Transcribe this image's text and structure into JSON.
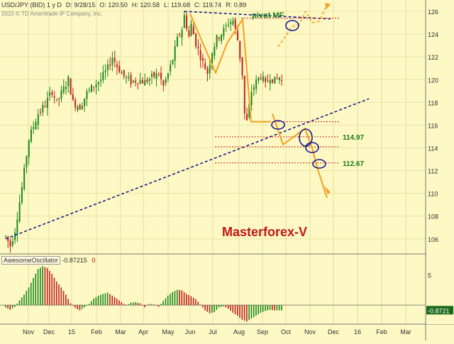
{
  "header": {
    "symbol": "USD/JPY (BID) 1 y D",
    "date": "D: 9/28/15",
    "open": "O: 120.50",
    "high": "H: 120.58",
    "low": "L: 119.68",
    "close": "C: 119.74",
    "range": "R: 0.89",
    "copyright": "2015 © TD Ameritrade IP Company, Inc."
  },
  "oscillator": {
    "name": "AwesomeOscillator",
    "value": "-0.87215",
    "zero": "0",
    "last_value_label": "-0.8721",
    "tick_label": "5"
  },
  "annotations": {
    "pivot": "pivot MF",
    "level1": "114.97",
    "level2": "112.67",
    "brand": "Masterforex-V"
  },
  "colors": {
    "bg": "#fdf8c4",
    "up": "#1a8a1a",
    "down": "#c02020",
    "orange": "#f5a020",
    "trend": "#1a1a8a",
    "level": "#cc2222",
    "brand": "#c01818"
  },
  "chart_data": {
    "type": "candlestick",
    "x_ticks": [
      "Nov",
      "Dec",
      "15",
      "Feb",
      "Mar",
      "Apr",
      "May",
      "Jun",
      "Jul",
      "Aug",
      "Sep",
      "Oct",
      "Nov",
      "Dec",
      "16",
      "Feb",
      "Mar"
    ],
    "y_ticks": [
      106,
      108,
      110,
      112,
      114,
      116,
      118,
      120,
      122,
      124,
      126
    ],
    "ylim": [
      104.8,
      127
    ],
    "price_path": [
      [
        0,
        106.2
      ],
      [
        2,
        105.4
      ],
      [
        4,
        106.8
      ],
      [
        7,
        110.5
      ],
      [
        10,
        114.8
      ],
      [
        14,
        117.0
      ],
      [
        17,
        117.8
      ],
      [
        20,
        119.0
      ],
      [
        22,
        118.0
      ],
      [
        24,
        118.8
      ],
      [
        27,
        120.0
      ],
      [
        29,
        118.0
      ],
      [
        32,
        117.6
      ],
      [
        35,
        118.8
      ],
      [
        38,
        119.5
      ],
      [
        41,
        120.0
      ],
      [
        44,
        121.0
      ],
      [
        46,
        122.0
      ],
      [
        48,
        121.2
      ],
      [
        51,
        120.3
      ],
      [
        54,
        119.8
      ],
      [
        57,
        120.0
      ],
      [
        60,
        119.8
      ],
      [
        63,
        120.2
      ],
      [
        66,
        120.5
      ],
      [
        68,
        119.4
      ],
      [
        70,
        120.5
      ],
      [
        72,
        121.8
      ],
      [
        74,
        123.5
      ],
      [
        76,
        124.5
      ],
      [
        77,
        125.6
      ],
      [
        79,
        123.8
      ],
      [
        80,
        124.8
      ],
      [
        82,
        123.2
      ],
      [
        85,
        121.5
      ],
      [
        87,
        120.6
      ],
      [
        89,
        122.5
      ],
      [
        91,
        123.6
      ],
      [
        94,
        124.3
      ],
      [
        96,
        125.0
      ],
      [
        98,
        125.2
      ],
      [
        100,
        123.5
      ],
      [
        102,
        120.5
      ],
      [
        103,
        117.0
      ],
      [
        104,
        116.3
      ],
      [
        106,
        119.0
      ],
      [
        108,
        119.8
      ],
      [
        110,
        120.4
      ],
      [
        112,
        119.5
      ],
      [
        114,
        120.3
      ],
      [
        116,
        119.9
      ],
      [
        118,
        120.2
      ],
      [
        119,
        119.9
      ]
    ],
    "oscillator": {
      "ylim": [
        -3,
        7
      ],
      "path": [
        [
          0,
          -0.4
        ],
        [
          2,
          -0.8
        ],
        [
          4,
          -0.3
        ],
        [
          6,
          0.8
        ],
        [
          8,
          1.8
        ],
        [
          10,
          3.0
        ],
        [
          12,
          4.6
        ],
        [
          14,
          6.1
        ],
        [
          16,
          6.6
        ],
        [
          18,
          6.3
        ],
        [
          20,
          5.3
        ],
        [
          22,
          4.0
        ],
        [
          24,
          3.0
        ],
        [
          26,
          1.8
        ],
        [
          28,
          0.3
        ],
        [
          30,
          -0.5
        ],
        [
          32,
          -0.9
        ],
        [
          34,
          -0.4
        ],
        [
          36,
          0.2
        ],
        [
          38,
          1.1
        ],
        [
          40,
          1.6
        ],
        [
          42,
          1.9
        ],
        [
          44,
          2.1
        ],
        [
          46,
          1.6
        ],
        [
          48,
          1.1
        ],
        [
          50,
          0.5
        ],
        [
          52,
          -0.1
        ],
        [
          54,
          0.4
        ],
        [
          56,
          0.5
        ],
        [
          58,
          0.3
        ],
        [
          60,
          -0.4
        ],
        [
          62,
          0.2
        ],
        [
          64,
          0.1
        ],
        [
          66,
          -0.3
        ],
        [
          68,
          0.7
        ],
        [
          70,
          1.6
        ],
        [
          72,
          2.2
        ],
        [
          74,
          2.6
        ],
        [
          76,
          2.5
        ],
        [
          78,
          1.9
        ],
        [
          80,
          1.5
        ],
        [
          82,
          1.0
        ],
        [
          84,
          0.1
        ],
        [
          86,
          -0.9
        ],
        [
          88,
          -1.4
        ],
        [
          90,
          -1.2
        ],
        [
          92,
          -0.4
        ],
        [
          94,
          -0.2
        ],
        [
          96,
          -0.6
        ],
        [
          98,
          -1.3
        ],
        [
          100,
          -1.8
        ],
        [
          102,
          -2.5
        ],
        [
          104,
          -2.8
        ],
        [
          106,
          -2.3
        ],
        [
          108,
          -1.8
        ],
        [
          110,
          -1.3
        ],
        [
          112,
          -1.0
        ],
        [
          114,
          -0.8
        ],
        [
          116,
          -0.9
        ],
        [
          119,
          -0.9
        ]
      ]
    },
    "trendline_support": [
      [
        106.0,
        0
      ],
      [
        117.8,
        150
      ]
    ],
    "trendline_resistance": [
      [
        126.0,
        77
      ],
      [
        125.4,
        134
      ]
    ],
    "levels": [
      {
        "value": 116.3,
        "label": ""
      },
      {
        "value": 114.97,
        "label": "114.97"
      },
      {
        "value": 114.1,
        "label": ""
      },
      {
        "value": 112.67,
        "label": "112.67"
      }
    ],
    "pivot_level": 125.4
  }
}
